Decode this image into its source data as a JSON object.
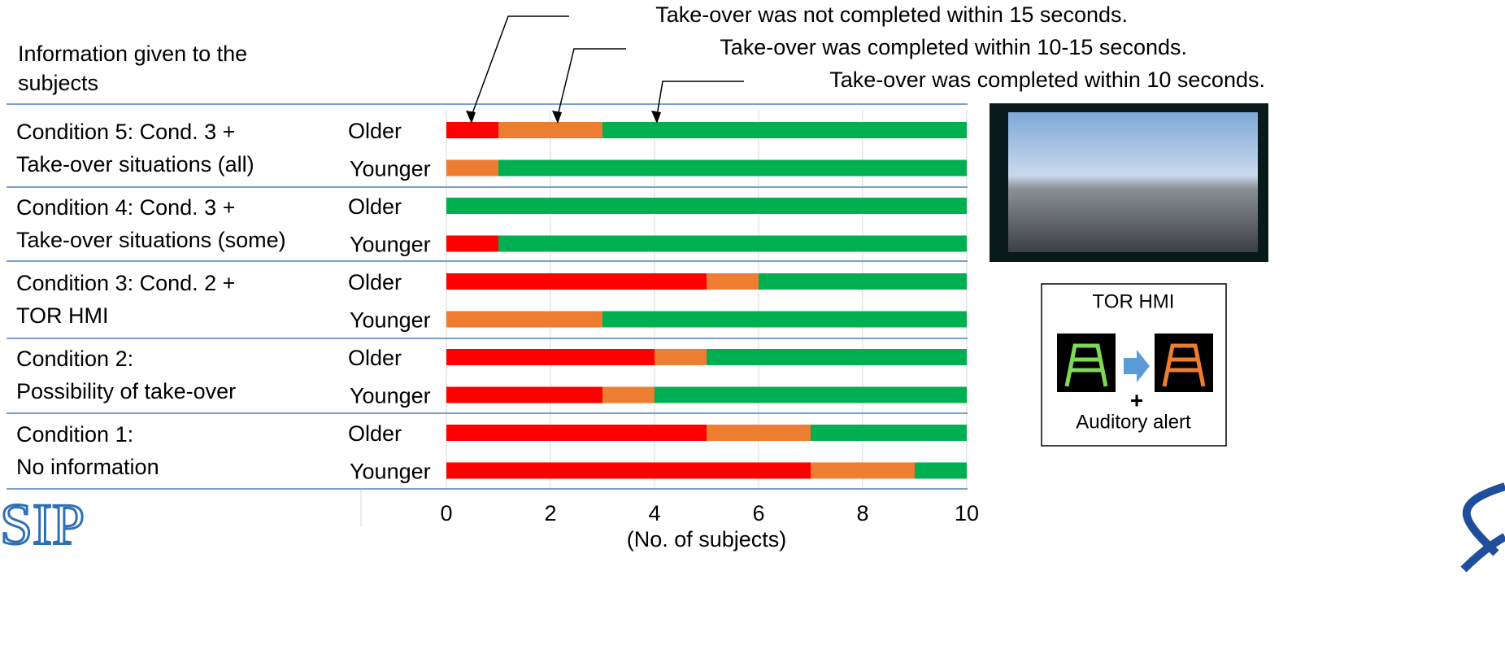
{
  "chart_data": {
    "type": "stacked-hbar",
    "header_lines": [
      "Information given to the",
      "subjects"
    ],
    "groups": [
      {
        "label_lines": [
          "Condition 5: Cond. 3 +",
          "Take-over situations (all)"
        ]
      },
      {
        "label_lines": [
          "Condition 4: Cond. 3 +",
          "Take-over situations (some)"
        ]
      },
      {
        "label_lines": [
          "Condition 3: Cond. 2 +",
          "TOR HMI"
        ]
      },
      {
        "label_lines": [
          "Condition 2:",
          "Possibility of take-over"
        ]
      },
      {
        "label_lines": [
          "Condition 1:",
          "No information"
        ]
      }
    ],
    "categories": [
      "Older",
      "Younger",
      "Older",
      "Younger",
      "Older",
      "Younger",
      "Older",
      "Younger",
      "Older",
      "Younger"
    ],
    "series": [
      {
        "name": "Take-over was not completed within 15 seconds.",
        "color": "#ff0000",
        "values": [
          1,
          0,
          0,
          1,
          5,
          0,
          4,
          3,
          5,
          7
        ]
      },
      {
        "name": "Take-over was completed within 10-15 seconds.",
        "color": "#ed7d31",
        "values": [
          2,
          1,
          0,
          0,
          1,
          3,
          1,
          1,
          2,
          2
        ]
      },
      {
        "name": "Take-over was completed within 10 seconds.",
        "color": "#00b050",
        "values": [
          7,
          9,
          10,
          9,
          4,
          7,
          5,
          6,
          3,
          1
        ]
      }
    ],
    "xlim": [
      0,
      10
    ],
    "xticks": [
      0,
      2,
      4,
      6,
      8,
      10
    ],
    "xlabel": "(No. of subjects)",
    "grid": true,
    "hmi": {
      "title": "TOR HMI",
      "plus": "+",
      "caption": "Auditory alert"
    },
    "logo_text": "SIP"
  }
}
